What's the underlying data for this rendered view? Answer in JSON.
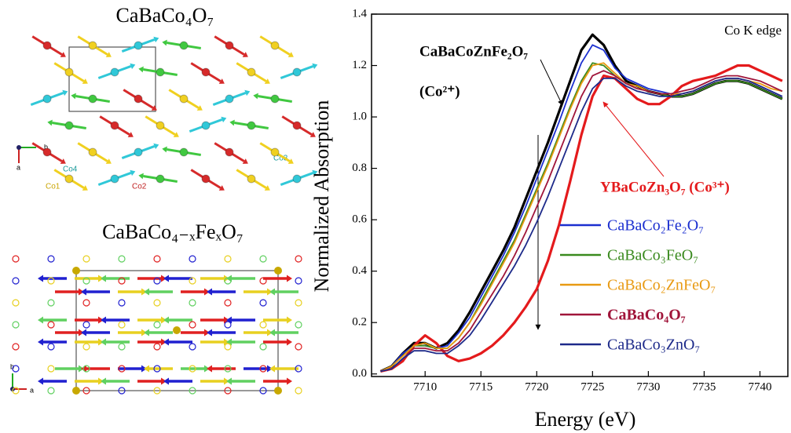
{
  "left_panel": {
    "top_title": "CaBaCo₄O₇",
    "bottom_title": "CaBaCo₄₋ₓFeₓO₇",
    "top_labels": [
      "Co4",
      "Co3",
      "Co1",
      "Co2",
      "b",
      "a"
    ],
    "bottom_labels": [
      "b",
      "a"
    ]
  },
  "chart_data": {
    "type": "line",
    "xlabel": "Energy (eV)",
    "ylabel": "Normalized Absorption",
    "annotations": [
      "CaBaCoZnFe₂O₇",
      "(Co²⁺)",
      "YBaCoZn₃O₇ (Co³⁺)",
      "Co K edge"
    ],
    "x": [
      7706,
      7707,
      7708,
      7709,
      7710,
      7711,
      7712,
      7713,
      7714,
      7715,
      7716,
      7717,
      7718,
      7719,
      7720,
      7721,
      7722,
      7723,
      7724,
      7725,
      7726,
      7727,
      7728,
      7729,
      7730,
      7731,
      7732,
      7733,
      7734,
      7735,
      7736,
      7737,
      7738,
      7739,
      7740,
      7741,
      7742
    ],
    "xlim": [
      7705.2,
      7742.5
    ],
    "xticks": [
      7710,
      7715,
      7720,
      7725,
      7730,
      7735,
      7740
    ],
    "ylim": [
      -0.01,
      1.4
    ],
    "yticks": [
      {
        "value": 0,
        "label": "0.0"
      },
      0.2,
      0.4,
      0.6,
      0.8,
      {
        "value": 1,
        "label": "1.0"
      },
      1.2,
      1.4
    ],
    "legend": "lower right",
    "series": [
      {
        "color": "#000000",
        "values": [
          0.01,
          0.03,
          0.08,
          0.12,
          0.12,
          0.1,
          0.12,
          0.17,
          0.24,
          0.32,
          0.4,
          0.48,
          0.57,
          0.68,
          0.79,
          0.9,
          1.02,
          1.14,
          1.26,
          1.32,
          1.28,
          1.2,
          1.14,
          1.12,
          1.1,
          1.09,
          1.08,
          1.08,
          1.09,
          1.11,
          1.13,
          1.14,
          1.14,
          1.13,
          1.11,
          1.09,
          1.07
        ]
      },
      {
        "color": "#e41a1c",
        "values": [
          0.01,
          0.02,
          0.05,
          0.11,
          0.15,
          0.12,
          0.07,
          0.05,
          0.06,
          0.08,
          0.11,
          0.15,
          0.2,
          0.26,
          0.33,
          0.44,
          0.58,
          0.75,
          0.93,
          1.08,
          1.16,
          1.15,
          1.11,
          1.07,
          1.05,
          1.05,
          1.08,
          1.12,
          1.14,
          1.15,
          1.16,
          1.18,
          1.2,
          1.2,
          1.18,
          1.16,
          1.14
        ]
      },
      {
        "name": "CaBaCo₂Fe₂O₇",
        "color": "#1b2fd0",
        "values": [
          0.01,
          0.03,
          0.08,
          0.11,
          0.11,
          0.1,
          0.11,
          0.16,
          0.22,
          0.3,
          0.38,
          0.46,
          0.55,
          0.65,
          0.76,
          0.87,
          0.98,
          1.1,
          1.21,
          1.28,
          1.26,
          1.19,
          1.15,
          1.13,
          1.11,
          1.1,
          1.09,
          1.09,
          1.1,
          1.12,
          1.14,
          1.15,
          1.15,
          1.14,
          1.12,
          1.1,
          1.08
        ]
      },
      {
        "name": "CaBaCo₃FeO₇",
        "color": "#3a8a1e",
        "values": [
          0.01,
          0.03,
          0.07,
          0.11,
          0.11,
          0.1,
          0.1,
          0.14,
          0.2,
          0.28,
          0.36,
          0.44,
          0.52,
          0.62,
          0.72,
          0.82,
          0.93,
          1.04,
          1.14,
          1.21,
          1.2,
          1.16,
          1.13,
          1.12,
          1.1,
          1.09,
          1.08,
          1.08,
          1.09,
          1.11,
          1.13,
          1.14,
          1.14,
          1.13,
          1.11,
          1.09,
          1.07
        ]
      },
      {
        "name": "CaBaCo₂ZnFeO₇",
        "color": "#e89a12",
        "values": [
          0.01,
          0.03,
          0.07,
          0.11,
          0.12,
          0.1,
          0.1,
          0.14,
          0.2,
          0.27,
          0.35,
          0.43,
          0.51,
          0.61,
          0.71,
          0.81,
          0.92,
          1.03,
          1.13,
          1.2,
          1.21,
          1.17,
          1.13,
          1.12,
          1.1,
          1.09,
          1.09,
          1.09,
          1.1,
          1.12,
          1.14,
          1.15,
          1.15,
          1.14,
          1.13,
          1.11,
          1.1
        ]
      },
      {
        "name": "CaBaCo₄O₇",
        "color": "#a0153a",
        "legend_bold": true,
        "values": [
          0.01,
          0.02,
          0.06,
          0.1,
          0.1,
          0.09,
          0.09,
          0.12,
          0.17,
          0.24,
          0.31,
          0.38,
          0.46,
          0.55,
          0.65,
          0.75,
          0.86,
          0.97,
          1.08,
          1.16,
          1.18,
          1.16,
          1.13,
          1.11,
          1.1,
          1.09,
          1.09,
          1.1,
          1.11,
          1.13,
          1.15,
          1.16,
          1.16,
          1.15,
          1.14,
          1.12,
          1.1
        ]
      },
      {
        "name": "CaBaCo₃ZnO₇",
        "color": "#1d2a8a",
        "values": [
          0.01,
          0.02,
          0.06,
          0.09,
          0.09,
          0.08,
          0.08,
          0.11,
          0.15,
          0.21,
          0.28,
          0.35,
          0.42,
          0.5,
          0.59,
          0.69,
          0.8,
          0.91,
          1.02,
          1.11,
          1.15,
          1.15,
          1.12,
          1.1,
          1.09,
          1.08,
          1.08,
          1.09,
          1.1,
          1.12,
          1.14,
          1.15,
          1.15,
          1.14,
          1.12,
          1.1,
          1.08
        ]
      }
    ]
  }
}
